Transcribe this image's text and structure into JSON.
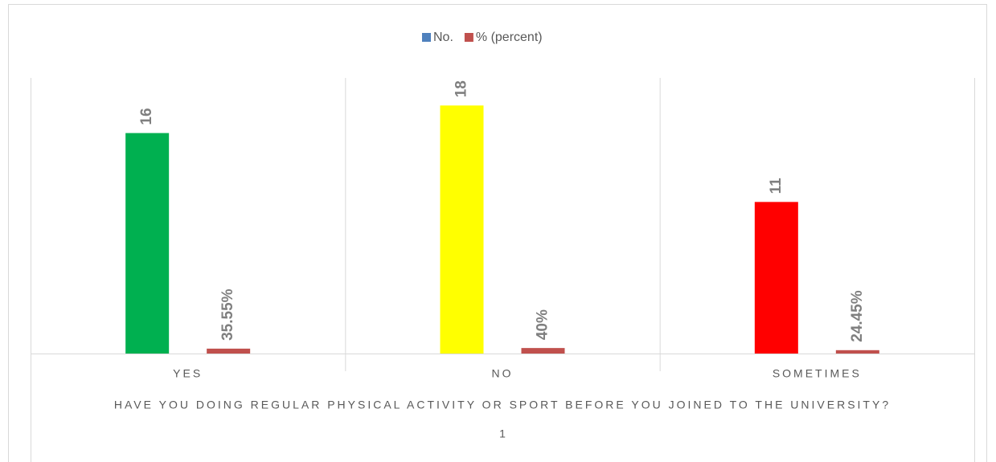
{
  "chart_data": {
    "type": "bar",
    "xlabel": "HAVE YOU DOING REGULAR PHYSICAL ACTIVITY OR SPORT BEFORE YOU JOINED TO THE UNIVERSITY?",
    "categories": [
      "YES",
      "NO",
      "SOMETIMES"
    ],
    "category_groups": [
      "1"
    ],
    "series": [
      {
        "name": "No.",
        "color": "#4f81bd",
        "colors": [
          "#00b050",
          "#ffff00",
          "#ff0000"
        ],
        "values": [
          16,
          18,
          11
        ]
      },
      {
        "name": "% (percent)",
        "color": "#c0504d",
        "values": [
          0.3555,
          0.4,
          0.2445
        ],
        "value_labels": [
          "35.55%",
          "40%",
          "24.45%"
        ]
      }
    ],
    "ylim": [
      0,
      20
    ],
    "legend": "top"
  }
}
